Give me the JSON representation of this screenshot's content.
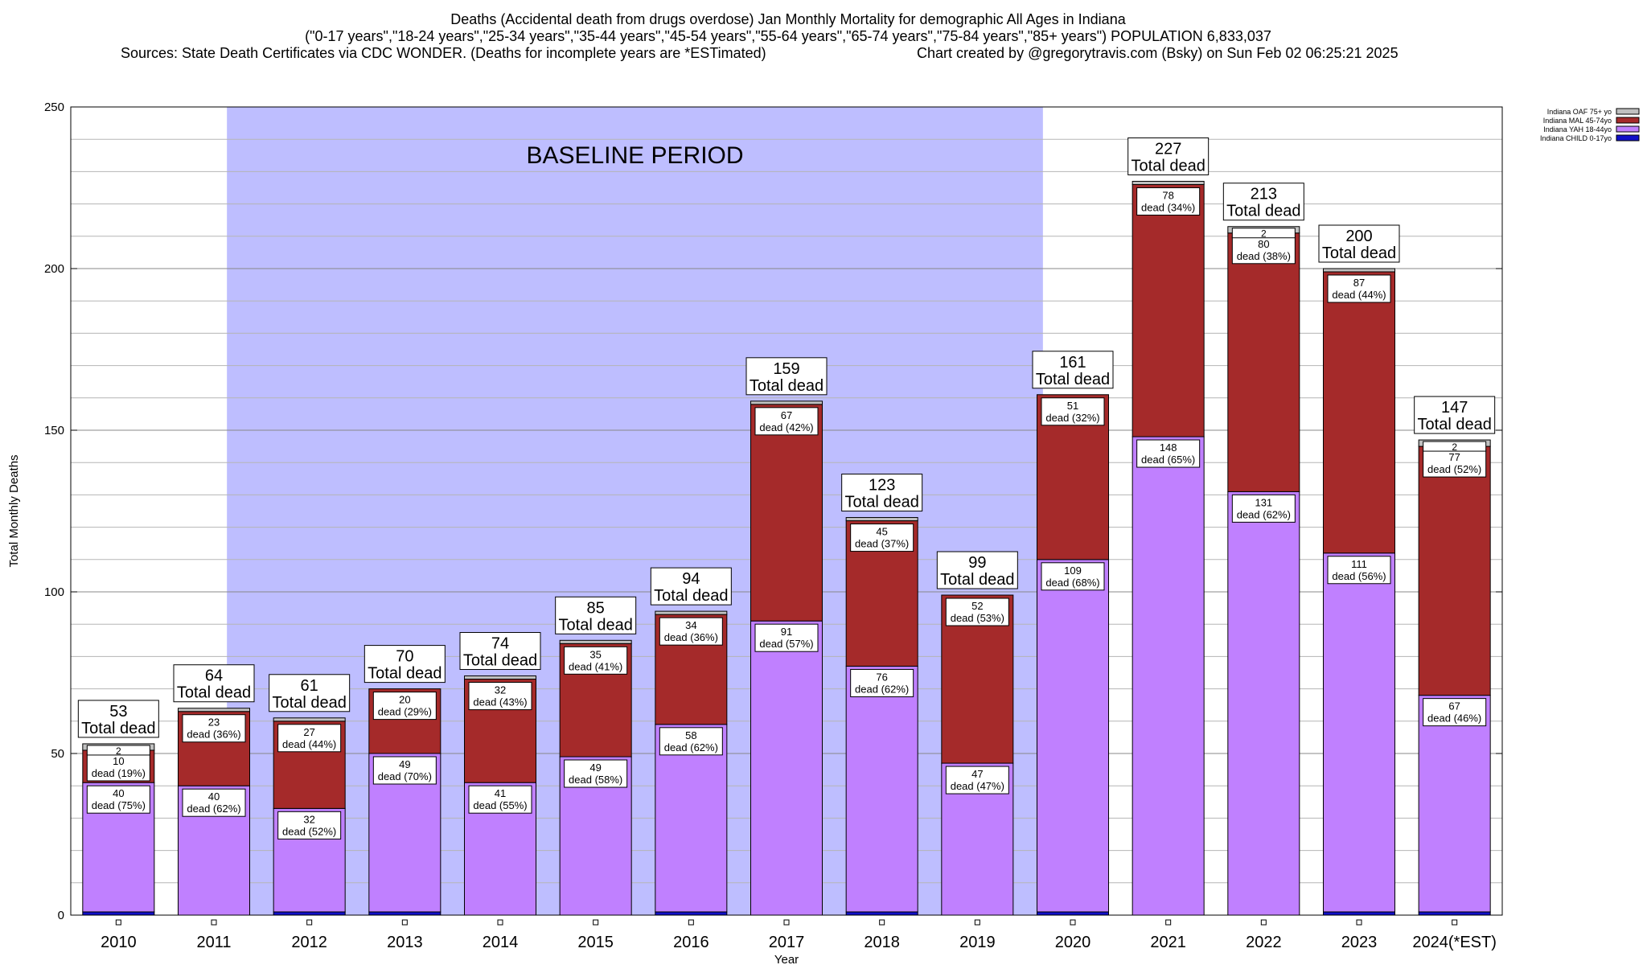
{
  "header": {
    "title": "Deaths (Accidental death from drugs overdose) Jan Monthly Mortality for demographic All Ages in Indiana",
    "subtitle": "(\"0-17 years\",\"18-24 years\",\"25-34 years\",\"35-44 years\",\"45-54 years\",\"55-64 years\",\"65-74 years\",\"75-84 years\",\"85+ years\") POPULATION 6,833,037",
    "sources": "Sources: State Death Certificates via CDC WONDER. (Deaths for incomplete years are *ESTimated)",
    "credit": "Chart created by @gregorytravis.com (Bsky) on Sun Feb 02 06:25:21 2025"
  },
  "chart_data": {
    "type": "bar",
    "stacked": true,
    "title": "Deaths (Accidental death from drugs overdose) Jan Monthly Mortality for demographic All Ages in Indiana",
    "xlabel": "Year",
    "ylabel": "Total Monthly Deaths",
    "ylim": [
      0,
      250
    ],
    "yticks": [
      0,
      50,
      100,
      150,
      200,
      250
    ],
    "grid": true,
    "legend_position": "top-right",
    "annotation": {
      "text": "BASELINE PERIOD",
      "from": "2012",
      "to": "2019",
      "color": "#bebeff"
    },
    "total_suffix": "Total dead",
    "dead_prefix": "dead",
    "categories": [
      "2010",
      "2011",
      "2012",
      "2013",
      "2014",
      "2015",
      "2016",
      "2017",
      "2018",
      "2019",
      "2020",
      "2021",
      "2022",
      "2023",
      "2024(*EST)"
    ],
    "series": [
      {
        "name": "Indiana CHILD 0-17yo",
        "color": "#1010c8",
        "values": [
          1,
          0,
          1,
          1,
          0,
          0,
          1,
          0,
          1,
          0,
          1,
          0,
          0,
          1,
          1
        ]
      },
      {
        "name": "Indiana YAH 18-44yo",
        "color": "#c080ff",
        "values": [
          40,
          40,
          32,
          49,
          41,
          49,
          58,
          91,
          76,
          47,
          109,
          148,
          131,
          111,
          67
        ],
        "labels": [
          "40",
          "40",
          "32",
          "49",
          "41",
          "49",
          "58",
          "91",
          "76",
          "47",
          "109",
          "148",
          "131",
          "111",
          "67"
        ],
        "pcts": [
          "75%",
          "62%",
          "52%",
          "70%",
          "55%",
          "58%",
          "62%",
          "57%",
          "62%",
          "47%",
          "68%",
          "65%",
          "62%",
          "56%",
          "46%"
        ]
      },
      {
        "name": "Indiana MAL 45-74yo",
        "color": "#a52a2a",
        "values": [
          10,
          23,
          27,
          20,
          32,
          35,
          34,
          67,
          45,
          52,
          51,
          78,
          80,
          87,
          77
        ],
        "labels": [
          "10",
          "23",
          "27",
          "20",
          "32",
          "35",
          "34",
          "67",
          "45",
          "52",
          "51",
          "78",
          "80",
          "87",
          "77"
        ],
        "pcts": [
          "19%",
          "36%",
          "44%",
          "29%",
          "43%",
          "41%",
          "36%",
          "42%",
          "37%",
          "53%",
          "32%",
          "34%",
          "38%",
          "44%",
          "52%"
        ]
      },
      {
        "name": "Indiana OAF 75+ yo",
        "color": "#c0c0c0",
        "values": [
          2,
          1,
          1,
          0,
          1,
          1,
          1,
          1,
          1,
          0,
          0,
          1,
          2,
          1,
          2
        ],
        "labels": [
          "2",
          "",
          "",
          "",
          "",
          "",
          "",
          "",
          "",
          "",
          "",
          "",
          "2",
          "",
          "2"
        ]
      }
    ],
    "totals": [
      53,
      64,
      61,
      70,
      74,
      85,
      94,
      159,
      123,
      99,
      161,
      227,
      213,
      200,
      147
    ]
  }
}
